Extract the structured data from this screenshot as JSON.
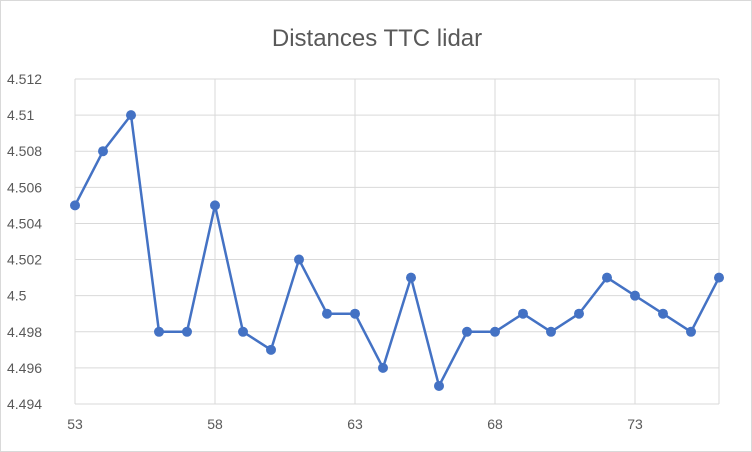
{
  "chart_data": {
    "type": "line",
    "title": "Distances TTC lidar",
    "xlabel": "",
    "ylabel": "",
    "xlim": [
      53,
      76
    ],
    "ylim": [
      4.494,
      4.512
    ],
    "x_ticks": [
      "53",
      "58",
      "63",
      "68",
      "73"
    ],
    "y_ticks": [
      "4.494",
      "4.496",
      "4.498",
      "4.5",
      "4.502",
      "4.504",
      "4.506",
      "4.508",
      "4.51",
      "4.512"
    ],
    "grid": true,
    "legend": "none",
    "series": [
      {
        "x": [
          53,
          54,
          55,
          56,
          57,
          58,
          59,
          60,
          61,
          62,
          63,
          64,
          65,
          66,
          67,
          68,
          69,
          70,
          71,
          72,
          73,
          74,
          75,
          76
        ],
        "y": [
          4.505,
          4.508,
          4.51,
          4.498,
          4.498,
          4.505,
          4.498,
          4.497,
          4.502,
          4.499,
          4.499,
          4.496,
          4.501,
          4.495,
          4.498,
          4.498,
          4.499,
          4.498,
          4.499,
          4.501,
          4.5,
          4.499,
          4.498,
          4.501
        ]
      }
    ],
    "colors": {
      "line": "#4472c4",
      "grid": "#d9d9d9",
      "text": "#595959"
    }
  }
}
